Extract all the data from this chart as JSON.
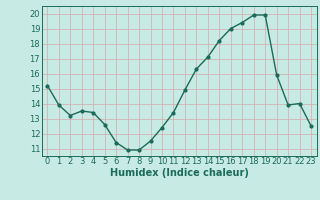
{
  "x": [
    0,
    1,
    2,
    3,
    4,
    5,
    6,
    7,
    8,
    9,
    10,
    11,
    12,
    13,
    14,
    15,
    16,
    17,
    18,
    19,
    20,
    21,
    22,
    23
  ],
  "y": [
    15.2,
    13.9,
    13.2,
    13.5,
    13.4,
    12.6,
    11.4,
    10.9,
    10.9,
    11.5,
    12.4,
    13.4,
    14.9,
    16.3,
    17.1,
    18.2,
    19.0,
    19.4,
    19.9,
    19.9,
    15.9,
    13.9,
    14.0,
    12.5
  ],
  "line_color": "#1a6b5a",
  "marker": "o",
  "marker_size": 2.0,
  "line_width": 1.0,
  "bg_color": "#c8eae4",
  "grid_color": "#d4a8a8",
  "xlabel": "Humidex (Indice chaleur)",
  "xlabel_fontsize": 7,
  "tick_fontsize": 6,
  "ylim": [
    10.5,
    20.5
  ],
  "yticks": [
    11,
    12,
    13,
    14,
    15,
    16,
    17,
    18,
    19,
    20
  ],
  "xlim": [
    -0.5,
    23.5
  ],
  "xticks": [
    0,
    1,
    2,
    3,
    4,
    5,
    6,
    7,
    8,
    9,
    10,
    11,
    12,
    13,
    14,
    15,
    16,
    17,
    18,
    19,
    20,
    21,
    22,
    23
  ]
}
